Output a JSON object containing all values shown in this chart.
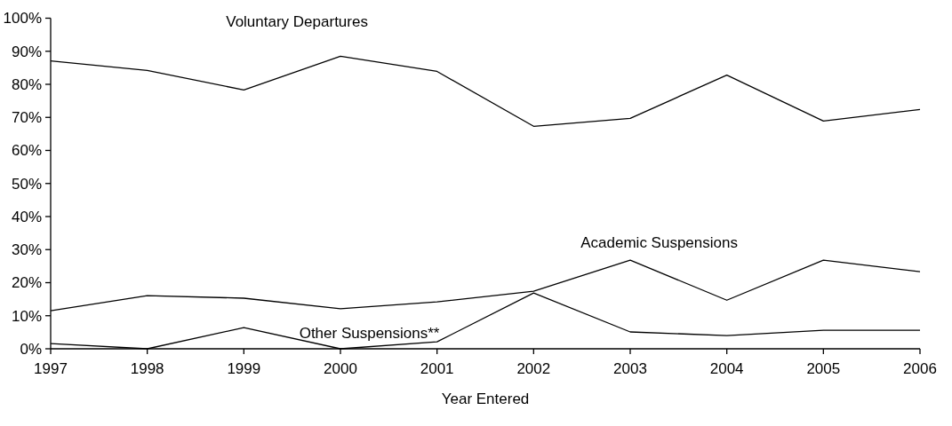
{
  "chart_data": {
    "type": "line",
    "xlabel": "Year Entered",
    "categories": [
      "1997",
      "1998",
      "1999",
      "2000",
      "2001",
      "2002",
      "2003",
      "2004",
      "2005",
      "2006"
    ],
    "series": [
      {
        "name": "Voluntary Departures",
        "color": "#000000",
        "values": [
          87.1,
          84.2,
          78.3,
          88.5,
          83.9,
          67.3,
          69.7,
          82.8,
          68.9,
          72.4
        ]
      },
      {
        "name": "Academic Suspensions",
        "color": "#000000",
        "values": [
          11.5,
          16.1,
          15.3,
          12.1,
          14.2,
          17.4,
          26.8,
          14.7,
          26.8,
          23.3
        ]
      },
      {
        "name": "Other Suspensions**",
        "color": "#000000",
        "values": [
          1.6,
          0,
          6.4,
          0,
          2.1,
          16.9,
          5.1,
          4.0,
          5.6,
          5.6
        ]
      }
    ],
    "ylim": [
      0,
      100
    ],
    "yticks": [
      {
        "value": 0,
        "label": "0%"
      },
      {
        "value": 10,
        "label": "10%"
      },
      {
        "value": 20,
        "label": "20%"
      },
      {
        "value": 30,
        "label": "30%"
      },
      {
        "value": 40,
        "label": "40%"
      },
      {
        "value": 50,
        "label": "50%"
      },
      {
        "value": 60,
        "label": "60%"
      },
      {
        "value": 70,
        "label": "70%"
      },
      {
        "value": 80,
        "label": "80%"
      },
      {
        "value": 90,
        "label": "90%"
      },
      {
        "value": 100,
        "label": "100%"
      }
    ],
    "grid": false,
    "marker": "none",
    "line_style": "solid"
  }
}
